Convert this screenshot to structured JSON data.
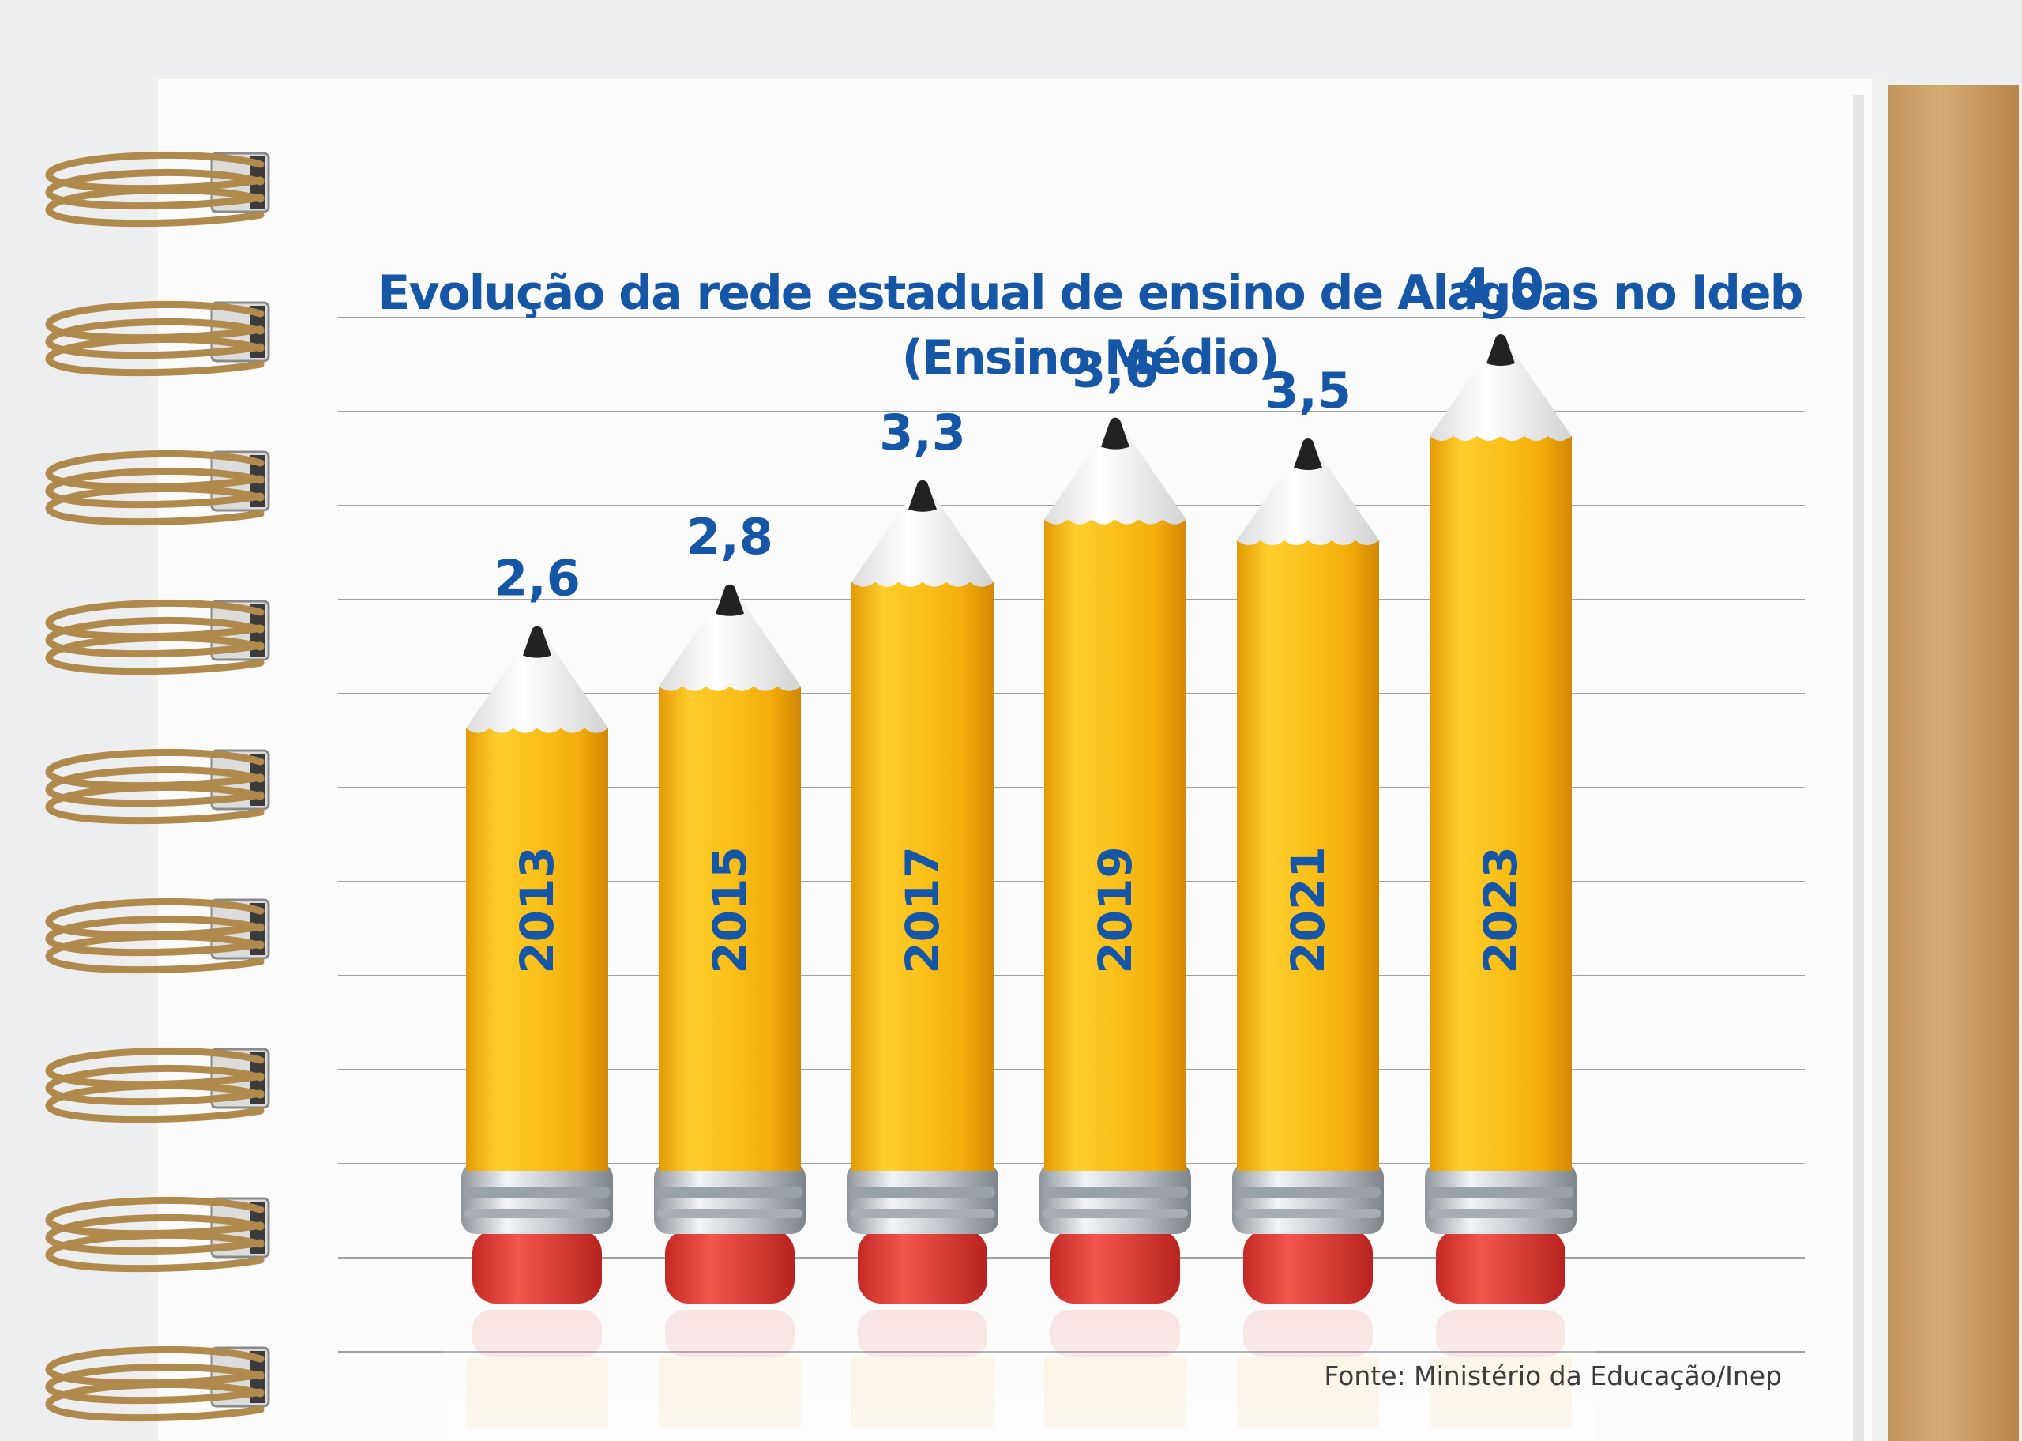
{
  "title": "Evolução da rede estadual de ensino de Alagoas no Ideb",
  "subtitle": "(Ensino Médio)",
  "source": "Fonte: Ministério da Educação/Inep",
  "colors": {
    "title": "#1556a6",
    "value_labels": "#1556a6",
    "pencil_body": "#f5b814",
    "pencil_tip_wood": "#f4f4f4",
    "pencil_lead": "#222222",
    "eraser": "#e0403a",
    "ferrule": "#c8cdd2",
    "spiral": "#b08a4c",
    "cover": "#c9a06a"
  },
  "chart_data": {
    "type": "bar",
    "title": "Evolução da rede estadual de ensino de Alagoas no Ideb",
    "subtitle": "(Ensino Médio)",
    "categories": [
      "2013",
      "2015",
      "2017",
      "2019",
      "2021",
      "2023"
    ],
    "values": [
      2.6,
      2.8,
      3.3,
      3.6,
      3.5,
      4.0
    ],
    "value_labels": [
      "2,6",
      "2,8",
      "3,3",
      "3,6",
      "3,5",
      "4,0"
    ],
    "xlabel": "",
    "ylabel": "",
    "grid": false,
    "bar_style": "pencil",
    "category_label_orientation": "vertical"
  }
}
